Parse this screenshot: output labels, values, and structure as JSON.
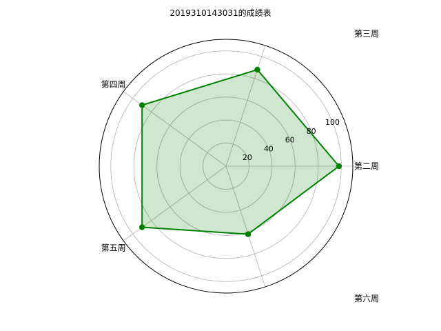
{
  "chart_data": {
    "type": "radar",
    "title": "2019310143031的成绩表",
    "categories": [
      "第二周",
      "第三周",
      "第四周",
      "第五周",
      "第六周"
    ],
    "series": [
      {
        "values": [
          98,
          88,
          90,
          90,
          62
        ],
        "color": "#008000",
        "fill_color": "#008000",
        "fill_opacity": 0.19
      }
    ],
    "rlim": [
      0,
      110
    ],
    "radial_ticks": [
      20,
      40,
      60,
      80,
      100
    ],
    "grid": true,
    "outer_circle_color": "#000000",
    "grid_color": "#b0b0b0"
  }
}
